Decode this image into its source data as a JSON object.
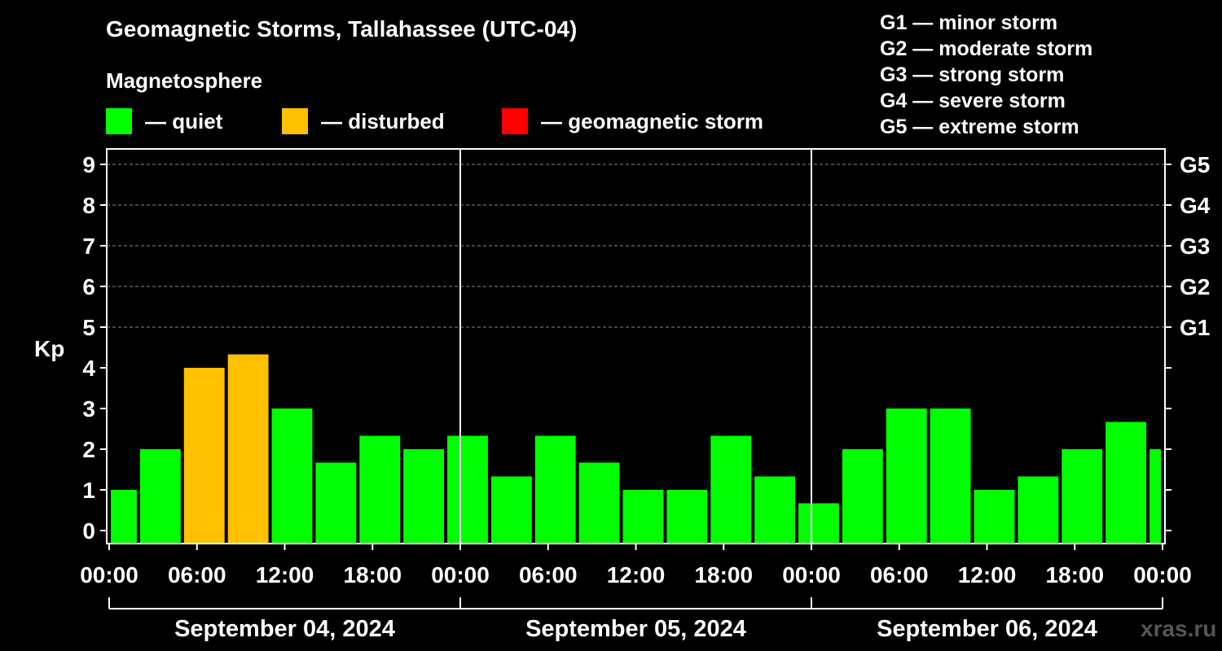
{
  "header": {
    "title": "Geomagnetic Storms, Tallahassee (UTC-04)",
    "subtitle": "Magnetosphere"
  },
  "legend": [
    {
      "label": "— quiet",
      "color": "#00ff00"
    },
    {
      "label": "— disturbed",
      "color": "#ffc000"
    },
    {
      "label": "— geomagnetic storm",
      "color": "#ff0000"
    }
  ],
  "storm_scale": [
    "G1 — minor storm",
    "G2 — moderate storm",
    "G3 — strong storm",
    "G4 — severe storm",
    "G5 — extreme storm"
  ],
  "watermark": "xras.ru",
  "chart_data": {
    "type": "bar",
    "title": "Geomagnetic Storms, Tallahassee (UTC-04)",
    "ylabel": "Kp",
    "ylim": [
      0,
      9
    ],
    "yticks": [
      "0",
      "1",
      "2",
      "3",
      "4",
      "5",
      "6",
      "7",
      "8",
      "9"
    ],
    "right_ticks": [
      {
        "kp": 5,
        "label": "G1"
      },
      {
        "kp": 6,
        "label": "G2"
      },
      {
        "kp": 7,
        "label": "G3"
      },
      {
        "kp": 8,
        "label": "G4"
      },
      {
        "kp": 9,
        "label": "G5"
      }
    ],
    "x_range_hours": [
      0,
      72
    ],
    "xtick_labels": [
      "00:00",
      "06:00",
      "12:00",
      "18:00",
      "00:00",
      "06:00",
      "12:00",
      "18:00",
      "00:00",
      "06:00",
      "12:00",
      "18:00",
      "00:00"
    ],
    "day_labels": [
      "September 04, 2024",
      "September 05, 2024",
      "September 06, 2024"
    ],
    "bars": [
      {
        "start": 0,
        "end": 2,
        "kp": 1.0,
        "level": "quiet"
      },
      {
        "start": 2,
        "end": 5,
        "kp": 2.0,
        "level": "quiet"
      },
      {
        "start": 5,
        "end": 8,
        "kp": 4.0,
        "level": "disturbed"
      },
      {
        "start": 8,
        "end": 11,
        "kp": 4.33,
        "level": "disturbed"
      },
      {
        "start": 11,
        "end": 14,
        "kp": 3.0,
        "level": "quiet"
      },
      {
        "start": 14,
        "end": 17,
        "kp": 1.67,
        "level": "quiet"
      },
      {
        "start": 17,
        "end": 20,
        "kp": 2.33,
        "level": "quiet"
      },
      {
        "start": 20,
        "end": 23,
        "kp": 2.0,
        "level": "quiet"
      },
      {
        "start": 23,
        "end": 26,
        "kp": 2.33,
        "level": "quiet"
      },
      {
        "start": 26,
        "end": 29,
        "kp": 1.33,
        "level": "quiet"
      },
      {
        "start": 29,
        "end": 32,
        "kp": 2.33,
        "level": "quiet"
      },
      {
        "start": 32,
        "end": 35,
        "kp": 1.67,
        "level": "quiet"
      },
      {
        "start": 35,
        "end": 38,
        "kp": 1.0,
        "level": "quiet"
      },
      {
        "start": 38,
        "end": 41,
        "kp": 1.0,
        "level": "quiet"
      },
      {
        "start": 41,
        "end": 44,
        "kp": 2.33,
        "level": "quiet"
      },
      {
        "start": 44,
        "end": 47,
        "kp": 1.33,
        "level": "quiet"
      },
      {
        "start": 47,
        "end": 50,
        "kp": 0.67,
        "level": "quiet"
      },
      {
        "start": 50,
        "end": 53,
        "kp": 2.0,
        "level": "quiet"
      },
      {
        "start": 53,
        "end": 56,
        "kp": 3.0,
        "level": "quiet"
      },
      {
        "start": 56,
        "end": 59,
        "kp": 3.0,
        "level": "quiet"
      },
      {
        "start": 59,
        "end": 62,
        "kp": 1.0,
        "level": "quiet"
      },
      {
        "start": 62,
        "end": 65,
        "kp": 1.33,
        "level": "quiet"
      },
      {
        "start": 65,
        "end": 68,
        "kp": 2.0,
        "level": "quiet"
      },
      {
        "start": 68,
        "end": 71,
        "kp": 2.67,
        "level": "quiet"
      },
      {
        "start": 71,
        "end": 72,
        "kp": 2.0,
        "level": "quiet"
      }
    ]
  }
}
